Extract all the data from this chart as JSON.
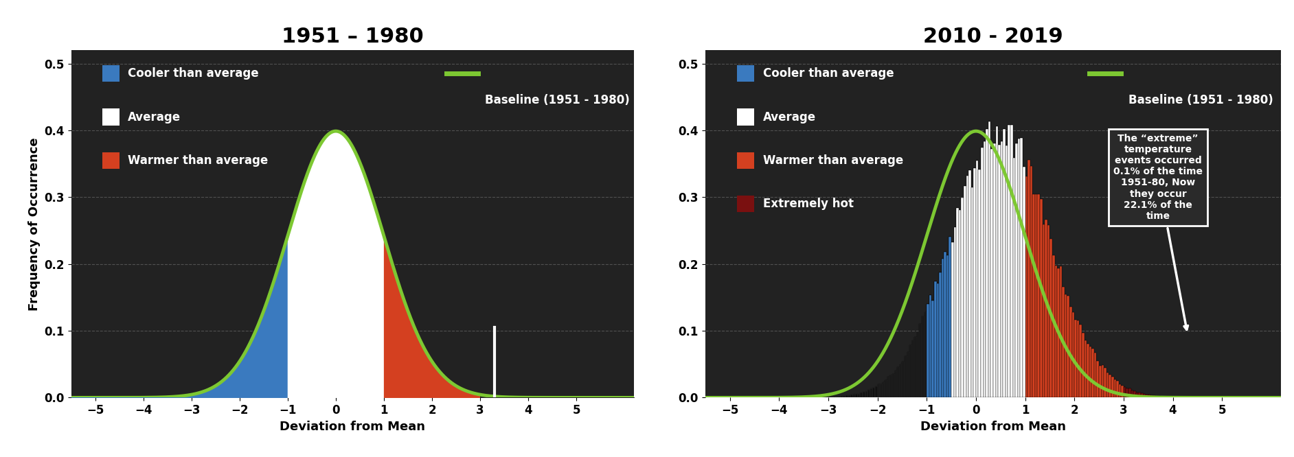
{
  "title1": "1951 – 1980",
  "title2": "2010 - 2019",
  "xlabel": "Deviation from Mean",
  "ylabel": "Frequency of Occurrence",
  "xlim": [
    -5.5,
    6.2
  ],
  "ylim": [
    0,
    0.52
  ],
  "yticks": [
    0,
    0.1,
    0.2,
    0.3,
    0.4,
    0.5
  ],
  "xticks": [
    -5,
    -4,
    -3,
    -2,
    -1,
    0,
    1,
    2,
    3,
    4,
    5
  ],
  "bg_color": "#222222",
  "text_color": "#ffffff",
  "grid_color": "#666666",
  "curve_color": "#7dc832",
  "curve_lw": 3.5,
  "blue_color": "#3a7abf",
  "white_color": "#ffffff",
  "red_color": "#d44020",
  "darkred_color": "#7a1010",
  "black_color": "#111111",
  "baseline_mu": 0.0,
  "baseline_sigma": 1.0,
  "shifted_mu": 0.5,
  "shifted_sigma": 1.0,
  "baseline_label": "Baseline (1951 - 1980)",
  "legend_items_1": [
    "Cooler than average",
    "Average",
    "Warmer than average"
  ],
  "legend_colors_1": [
    "#3a7abf",
    "#ffffff",
    "#d44020"
  ],
  "legend_items_2": [
    "Cooler than average",
    "Average",
    "Warmer than average",
    "Extremely hot"
  ],
  "legend_colors_2": [
    "#3a7abf",
    "#ffffff",
    "#d44020",
    "#7a1010"
  ],
  "annotation_text": "The “extreme”\ntemperature\nevents occurred\n0.1% of the time\n1951-80, Now\nthey occur\n22.1% of the\ntime",
  "title_fontsize": 22,
  "label_fontsize": 13,
  "legend_fontsize": 12,
  "tick_fontsize": 12,
  "bar_width": 0.05
}
